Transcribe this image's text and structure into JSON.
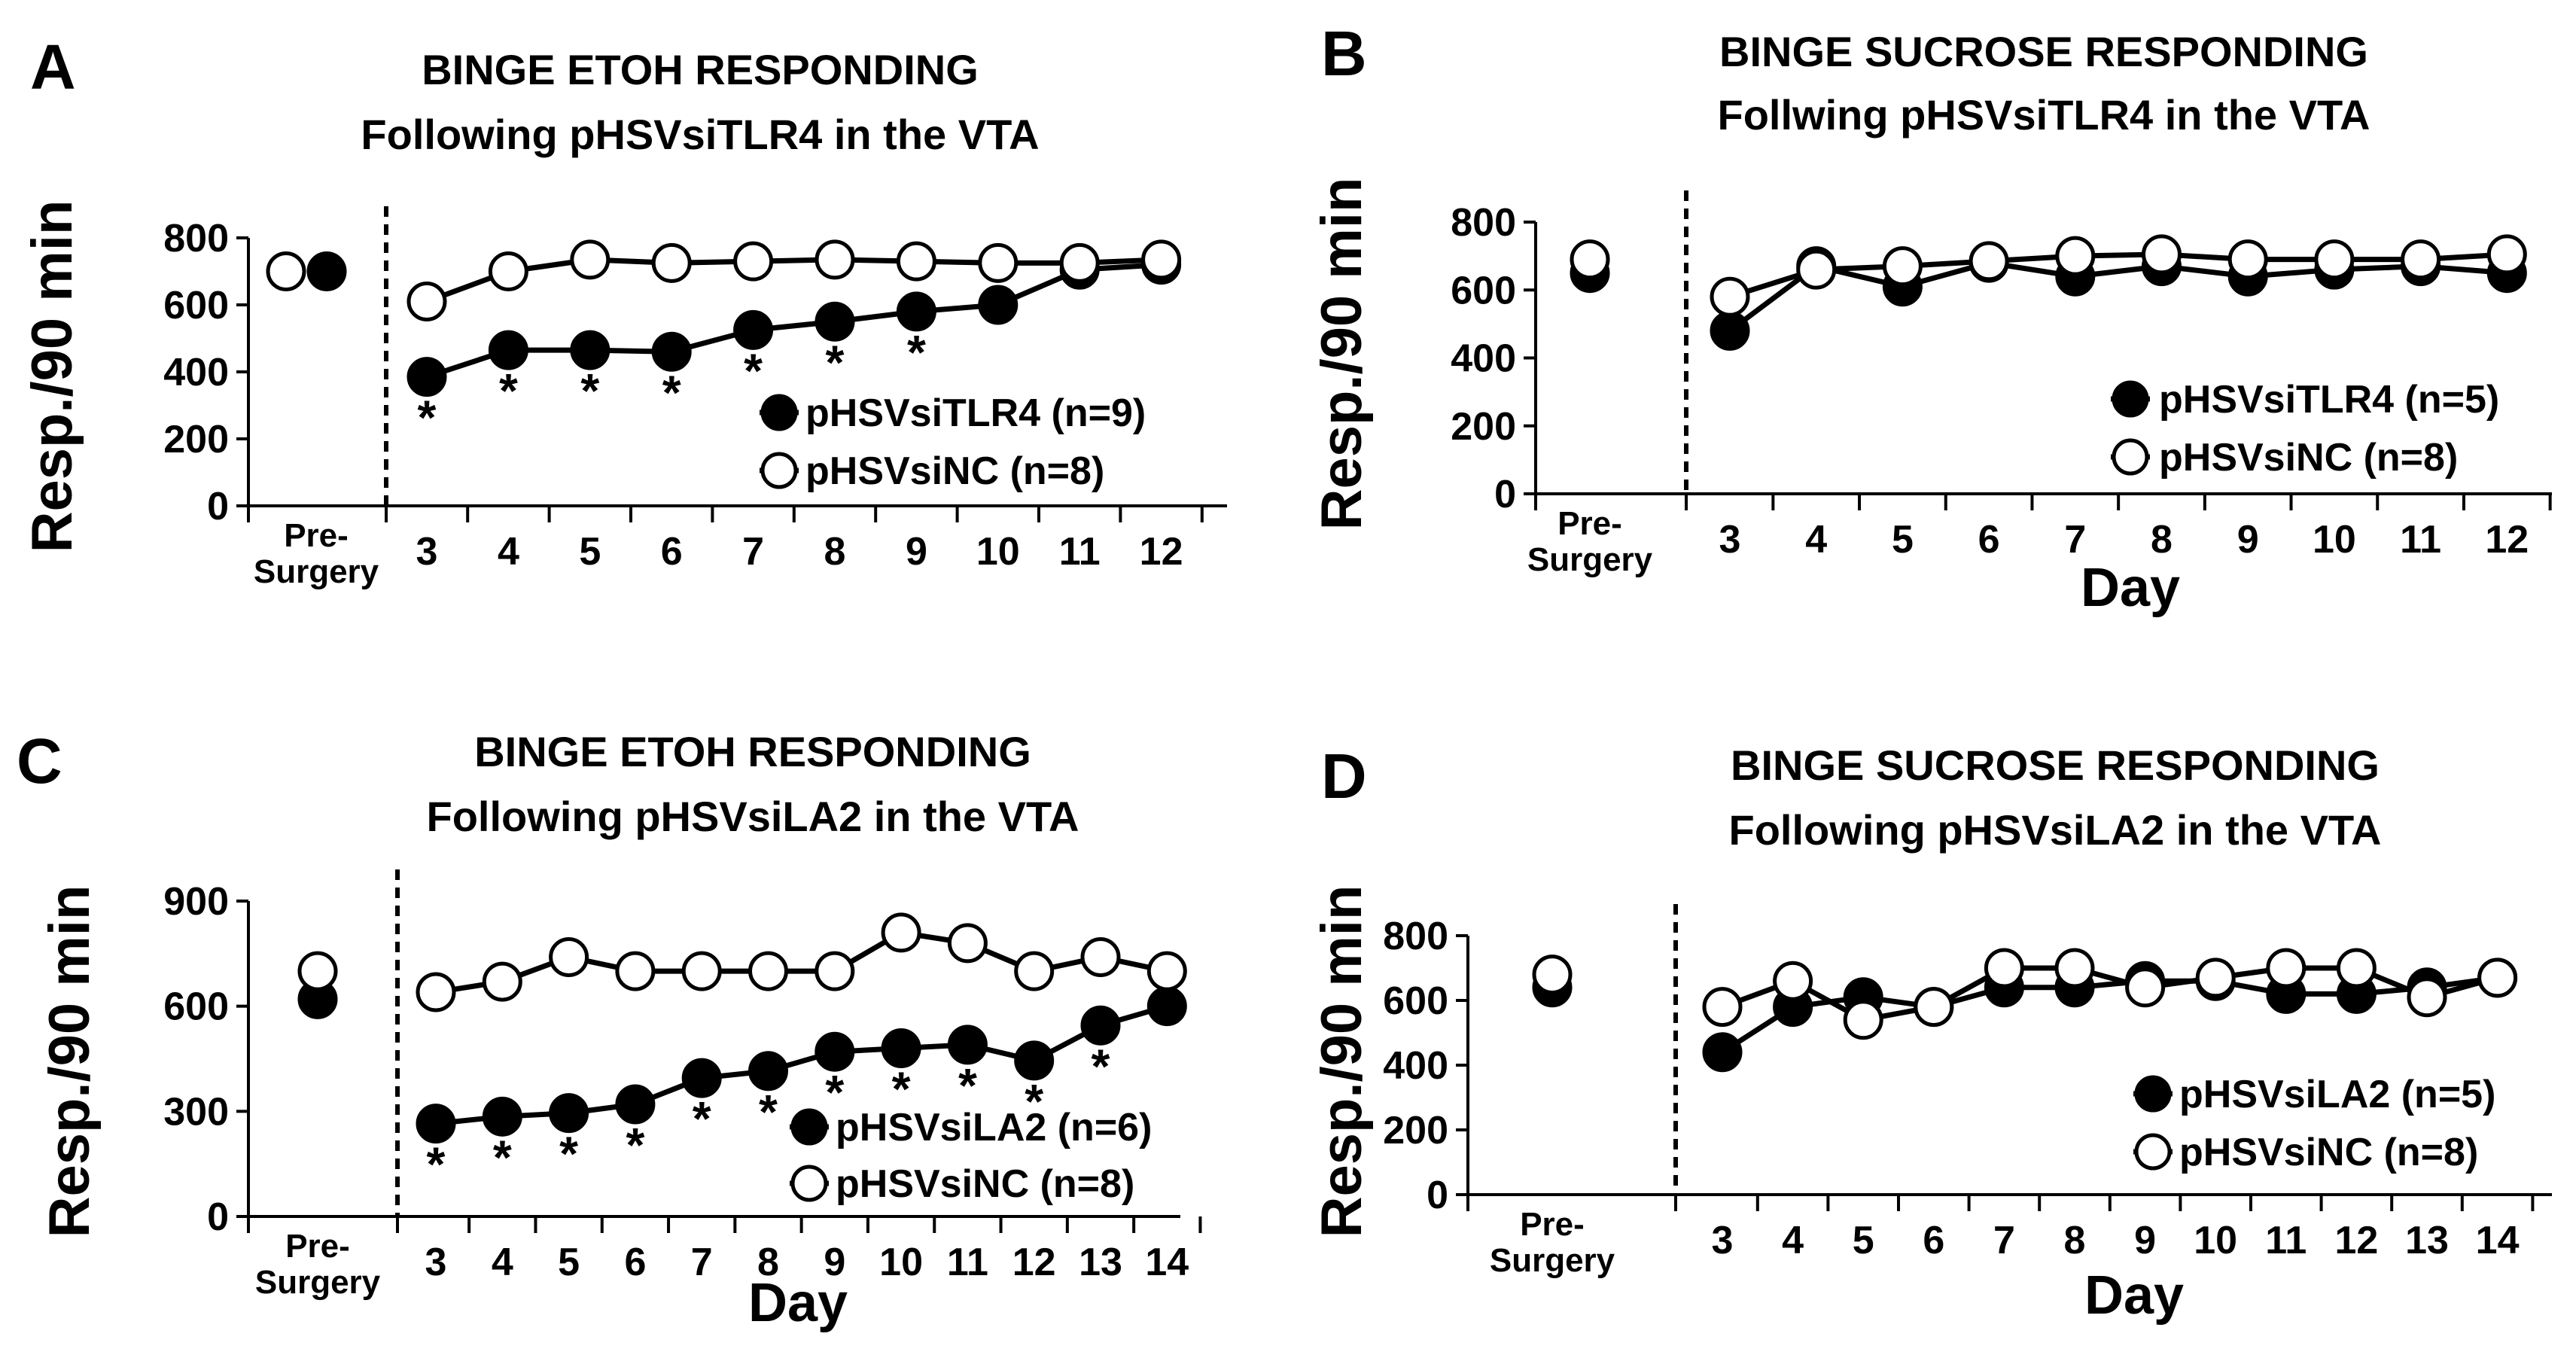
{
  "panels": [
    {
      "id": "A",
      "title1": "BINGE ETOH RESPONDING",
      "title2": "Following pHSVsiTLR4 in the VTA",
      "xlabel": ""
    },
    {
      "id": "B",
      "title1": "BINGE SUCROSE RESPONDING",
      "title2": "Follwing pHSVsiTLR4 in the VTA",
      "xlabel": "Day"
    },
    {
      "id": "C",
      "title1": "BINGE ETOH RESPONDING",
      "title2": "Following pHSVsiLA2 in the VTA",
      "xlabel": "Day"
    },
    {
      "id": "D",
      "title1": "BINGE SUCROSE RESPONDING",
      "title2": "Following pHSVsiLA2 in the VTA",
      "xlabel": "Day"
    }
  ],
  "chart_data": [
    {
      "panel": "A",
      "type": "line",
      "ylabel": "Resp./90 min",
      "ylim": [
        0,
        800
      ],
      "yticks": [
        0,
        200,
        400,
        600,
        800
      ],
      "presurgery_label": [
        "Pre-",
        "Surgery"
      ],
      "categories": [
        "3",
        "4",
        "5",
        "6",
        "7",
        "8",
        "9",
        "10",
        "11",
        "12"
      ],
      "presurgery": {
        "filled": 700,
        "open": 700
      },
      "series": [
        {
          "name": "pHSVsiTLR4 (n=9)",
          "style": "filled",
          "values": [
            385,
            465,
            465,
            460,
            525,
            550,
            580,
            600,
            705,
            720
          ]
        },
        {
          "name": "pHSVsiNC (n=8)",
          "style": "open",
          "values": [
            610,
            700,
            735,
            725,
            730,
            735,
            730,
            725,
            725,
            735
          ]
        }
      ],
      "significance": {
        "marker": "*",
        "days": [
          "3",
          "4",
          "5",
          "6",
          "7",
          "8",
          "9"
        ]
      }
    },
    {
      "panel": "B",
      "type": "line",
      "ylabel": "Resp./90 min",
      "ylim": [
        0,
        800
      ],
      "yticks": [
        0,
        200,
        400,
        600,
        800
      ],
      "presurgery_label": [
        "Pre-",
        "Surgery"
      ],
      "categories": [
        "3",
        "4",
        "5",
        "6",
        "7",
        "8",
        "9",
        "10",
        "11",
        "12"
      ],
      "presurgery": {
        "filled": 650,
        "open": 690
      },
      "series": [
        {
          "name": "pHSVsiTLR4 (n=5)",
          "style": "filled",
          "values": [
            480,
            670,
            610,
            680,
            640,
            670,
            640,
            660,
            670,
            650
          ]
        },
        {
          "name": "pHSVsiNC (n=8)",
          "style": "open",
          "values": [
            580,
            660,
            670,
            685,
            700,
            705,
            690,
            690,
            690,
            705
          ]
        }
      ],
      "significance": {
        "marker": "*",
        "days": []
      }
    },
    {
      "panel": "C",
      "type": "line",
      "ylabel": "Resp./90 min",
      "ylim": [
        0,
        900
      ],
      "yticks": [
        0,
        300,
        600,
        900
      ],
      "presurgery_label": [
        "Pre-",
        "Surgery"
      ],
      "categories": [
        "3",
        "4",
        "5",
        "6",
        "7",
        "8",
        "9",
        "10",
        "11",
        "12",
        "13",
        "14"
      ],
      "presurgery": {
        "filled": 620,
        "open": 700
      },
      "series": [
        {
          "name": "pHSVsiLA2 (n=6)",
          "style": "filled",
          "values": [
            265,
            285,
            295,
            320,
            395,
            415,
            470,
            480,
            490,
            445,
            545,
            600
          ]
        },
        {
          "name": "pHSVsiNC (n=8)",
          "style": "open",
          "values": [
            640,
            670,
            740,
            700,
            700,
            700,
            700,
            810,
            780,
            700,
            740,
            700
          ]
        }
      ],
      "significance": {
        "marker": "*",
        "days": [
          "3",
          "4",
          "5",
          "6",
          "7",
          "8",
          "9",
          "10",
          "11",
          "12",
          "13"
        ]
      }
    },
    {
      "panel": "D",
      "type": "line",
      "ylabel": "Resp./90 min",
      "ylim": [
        0,
        800
      ],
      "yticks": [
        0,
        200,
        400,
        600,
        800
      ],
      "presurgery_label": [
        "Pre-",
        "Surgery"
      ],
      "categories": [
        "3",
        "4",
        "5",
        "6",
        "7",
        "8",
        "9",
        "10",
        "11",
        "12",
        "13",
        "14"
      ],
      "presurgery": {
        "filled": 640,
        "open": 680
      },
      "series": [
        {
          "name": "pHSVsiLA2 (n=5)",
          "style": "filled",
          "values": [
            440,
            580,
            610,
            580,
            640,
            640,
            660,
            660,
            620,
            620,
            640,
            670
          ]
        },
        {
          "name": "pHSVsiNC (n=8)",
          "style": "open",
          "values": [
            580,
            660,
            540,
            580,
            700,
            700,
            640,
            670,
            700,
            700,
            610,
            670
          ]
        }
      ],
      "significance": {
        "marker": "*",
        "days": []
      }
    }
  ]
}
